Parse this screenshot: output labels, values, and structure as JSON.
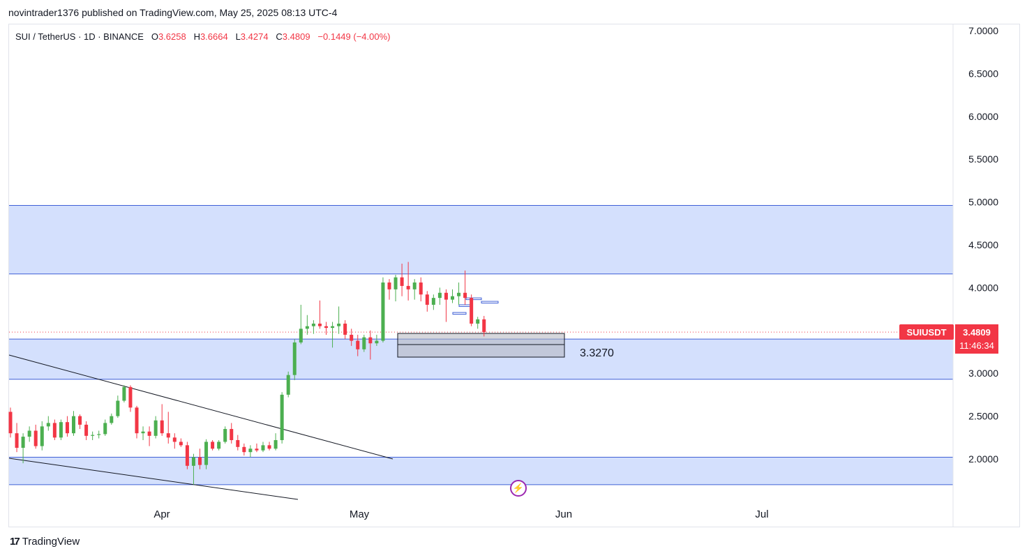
{
  "header": {
    "published_line": "novintrader1376 published on TradingView.com, May 25, 2025 08:13 UTC-4"
  },
  "legend": {
    "symbol": "SUI / TetherUS · 1D · BINANCE",
    "open_label": "O",
    "open": "3.6258",
    "high_label": "H",
    "high": "3.6664",
    "low_label": "L",
    "low": "3.4274",
    "close_label": "C",
    "close": "3.4809",
    "change": "−0.1449 (−4.00%)"
  },
  "price_tag": {
    "ticker": "SUIUSDT",
    "last_price": "3.4809",
    "countdown": "11:46:34"
  },
  "annotation": {
    "level_text": "3.3270"
  },
  "footer": {
    "brand": "TradingView",
    "logo_glyph": "17"
  },
  "colors": {
    "up": "#22ab94",
    "up_body": "#4caf50",
    "down": "#f23645",
    "zone_fill": "#d4e0fd",
    "zone_line": "#3f5fd6",
    "accent": "#9c27b0"
  },
  "chart_data": {
    "type": "candlestick",
    "title": "SUI / TetherUS · 1D · BINANCE",
    "y_ticks": [
      "7.0000",
      "6.5000",
      "6.0000",
      "5.5000",
      "5.0000",
      "4.5000",
      "4.0000",
      "3.5000",
      "3.0000",
      "2.5000",
      "2.0000"
    ],
    "y_tick_values": [
      7.0,
      6.5,
      6.0,
      5.5,
      5.0,
      4.5,
      4.0,
      3.5,
      3.0,
      2.5,
      2.0
    ],
    "x_labels": [
      "Apr",
      "May",
      "Jun",
      "Jul"
    ],
    "ylim": [
      1.55,
      7.1
    ],
    "zones": [
      {
        "name": "upper-resistance-zone",
        "low": 4.16,
        "high": 4.96
      },
      {
        "name": "middle-support-zone",
        "low": 2.93,
        "high": 3.4
      },
      {
        "name": "lower-support-zone",
        "low": 1.7,
        "high": 2.02
      }
    ],
    "marked_level": 3.327,
    "last_price": 3.4809,
    "candles": [
      {
        "o": 2.55,
        "h": 2.6,
        "l": 2.25,
        "c": 2.3
      },
      {
        "o": 2.3,
        "h": 2.42,
        "l": 2.08,
        "c": 2.13
      },
      {
        "o": 2.13,
        "h": 2.3,
        "l": 1.95,
        "c": 2.26
      },
      {
        "o": 2.26,
        "h": 2.38,
        "l": 2.2,
        "c": 2.33
      },
      {
        "o": 2.33,
        "h": 2.4,
        "l": 2.12,
        "c": 2.15
      },
      {
        "o": 2.15,
        "h": 2.44,
        "l": 2.1,
        "c": 2.38
      },
      {
        "o": 2.38,
        "h": 2.5,
        "l": 2.33,
        "c": 2.42
      },
      {
        "o": 2.42,
        "h": 2.46,
        "l": 2.22,
        "c": 2.25
      },
      {
        "o": 2.25,
        "h": 2.46,
        "l": 2.22,
        "c": 2.43
      },
      {
        "o": 2.43,
        "h": 2.5,
        "l": 2.26,
        "c": 2.3
      },
      {
        "o": 2.3,
        "h": 2.56,
        "l": 2.27,
        "c": 2.5
      },
      {
        "o": 2.5,
        "h": 2.52,
        "l": 2.35,
        "c": 2.4
      },
      {
        "o": 2.4,
        "h": 2.44,
        "l": 2.22,
        "c": 2.27
      },
      {
        "o": 2.27,
        "h": 2.32,
        "l": 2.22,
        "c": 2.28
      },
      {
        "o": 2.28,
        "h": 2.33,
        "l": 2.24,
        "c": 2.29
      },
      {
        "o": 2.29,
        "h": 2.46,
        "l": 2.27,
        "c": 2.42
      },
      {
        "o": 2.42,
        "h": 2.53,
        "l": 2.4,
        "c": 2.5
      },
      {
        "o": 2.5,
        "h": 2.74,
        "l": 2.48,
        "c": 2.68
      },
      {
        "o": 2.68,
        "h": 2.86,
        "l": 2.66,
        "c": 2.84
      },
      {
        "o": 2.84,
        "h": 2.86,
        "l": 2.55,
        "c": 2.6
      },
      {
        "o": 2.6,
        "h": 2.62,
        "l": 2.24,
        "c": 2.3
      },
      {
        "o": 2.3,
        "h": 2.38,
        "l": 2.22,
        "c": 2.32
      },
      {
        "o": 2.32,
        "h": 2.38,
        "l": 2.15,
        "c": 2.27
      },
      {
        "o": 2.27,
        "h": 2.5,
        "l": 2.24,
        "c": 2.45
      },
      {
        "o": 2.45,
        "h": 2.64,
        "l": 2.27,
        "c": 2.3
      },
      {
        "o": 2.3,
        "h": 2.55,
        "l": 2.18,
        "c": 2.25
      },
      {
        "o": 2.25,
        "h": 2.3,
        "l": 2.12,
        "c": 2.2
      },
      {
        "o": 2.2,
        "h": 2.24,
        "l": 2.14,
        "c": 2.16
      },
      {
        "o": 2.16,
        "h": 2.2,
        "l": 1.88,
        "c": 1.92
      },
      {
        "o": 1.92,
        "h": 2.06,
        "l": 1.7,
        "c": 2.02
      },
      {
        "o": 2.02,
        "h": 2.12,
        "l": 1.88,
        "c": 1.93
      },
      {
        "o": 1.93,
        "h": 2.23,
        "l": 1.88,
        "c": 2.2
      },
      {
        "o": 2.2,
        "h": 2.22,
        "l": 2.1,
        "c": 2.12
      },
      {
        "o": 2.12,
        "h": 2.22,
        "l": 2.1,
        "c": 2.2
      },
      {
        "o": 2.2,
        "h": 2.38,
        "l": 2.18,
        "c": 2.35
      },
      {
        "o": 2.35,
        "h": 2.42,
        "l": 2.18,
        "c": 2.22
      },
      {
        "o": 2.22,
        "h": 2.28,
        "l": 2.1,
        "c": 2.14
      },
      {
        "o": 2.14,
        "h": 2.18,
        "l": 2.04,
        "c": 2.08
      },
      {
        "o": 2.08,
        "h": 2.16,
        "l": 2.02,
        "c": 2.12
      },
      {
        "o": 2.12,
        "h": 2.18,
        "l": 2.08,
        "c": 2.1
      },
      {
        "o": 2.1,
        "h": 2.2,
        "l": 2.08,
        "c": 2.16
      },
      {
        "o": 2.16,
        "h": 2.2,
        "l": 2.1,
        "c": 2.12
      },
      {
        "o": 2.12,
        "h": 2.3,
        "l": 2.1,
        "c": 2.22
      },
      {
        "o": 2.22,
        "h": 2.78,
        "l": 2.18,
        "c": 2.75
      },
      {
        "o": 2.75,
        "h": 3.02,
        "l": 2.72,
        "c": 2.98
      },
      {
        "o": 2.98,
        "h": 3.4,
        "l": 2.92,
        "c": 3.36
      },
      {
        "o": 3.36,
        "h": 3.8,
        "l": 3.34,
        "c": 3.52
      },
      {
        "o": 3.52,
        "h": 3.68,
        "l": 3.45,
        "c": 3.55
      },
      {
        "o": 3.55,
        "h": 3.62,
        "l": 3.46,
        "c": 3.58
      },
      {
        "o": 3.58,
        "h": 3.85,
        "l": 3.52,
        "c": 3.55
      },
      {
        "o": 3.55,
        "h": 3.6,
        "l": 3.45,
        "c": 3.53
      },
      {
        "o": 3.53,
        "h": 3.6,
        "l": 3.3,
        "c": 3.55
      },
      {
        "o": 3.55,
        "h": 3.78,
        "l": 3.46,
        "c": 3.58
      },
      {
        "o": 3.58,
        "h": 3.62,
        "l": 3.4,
        "c": 3.45
      },
      {
        "o": 3.45,
        "h": 3.52,
        "l": 3.32,
        "c": 3.38
      },
      {
        "o": 3.38,
        "h": 3.45,
        "l": 3.2,
        "c": 3.28
      },
      {
        "o": 3.28,
        "h": 3.45,
        "l": 3.25,
        "c": 3.42
      },
      {
        "o": 3.42,
        "h": 3.5,
        "l": 3.16,
        "c": 3.35
      },
      {
        "o": 3.35,
        "h": 3.45,
        "l": 3.32,
        "c": 3.38
      },
      {
        "o": 3.38,
        "h": 4.12,
        "l": 3.36,
        "c": 4.06
      },
      {
        "o": 4.06,
        "h": 4.1,
        "l": 3.86,
        "c": 3.98
      },
      {
        "o": 3.98,
        "h": 4.15,
        "l": 3.84,
        "c": 4.12
      },
      {
        "o": 4.12,
        "h": 4.28,
        "l": 3.9,
        "c": 4.02
      },
      {
        "o": 4.02,
        "h": 4.3,
        "l": 3.85,
        "c": 3.98
      },
      {
        "o": 3.98,
        "h": 4.1,
        "l": 3.86,
        "c": 4.06
      },
      {
        "o": 4.06,
        "h": 4.12,
        "l": 3.84,
        "c": 3.92
      },
      {
        "o": 3.92,
        "h": 3.96,
        "l": 3.72,
        "c": 3.8
      },
      {
        "o": 3.8,
        "h": 3.92,
        "l": 3.74,
        "c": 3.88
      },
      {
        "o": 3.88,
        "h": 4.0,
        "l": 3.8,
        "c": 3.94
      },
      {
        "o": 3.94,
        "h": 3.98,
        "l": 3.6,
        "c": 3.86
      },
      {
        "o": 3.86,
        "h": 3.98,
        "l": 3.82,
        "c": 3.9
      },
      {
        "o": 3.9,
        "h": 4.06,
        "l": 3.8,
        "c": 3.94
      },
      {
        "o": 3.94,
        "h": 4.2,
        "l": 3.8,
        "c": 3.88
      },
      {
        "o": 3.88,
        "h": 3.92,
        "l": 3.55,
        "c": 3.58
      },
      {
        "o": 3.58,
        "h": 3.66,
        "l": 3.52,
        "c": 3.63
      },
      {
        "o": 3.63,
        "h": 3.67,
        "l": 3.43,
        "c": 3.48
      }
    ]
  }
}
